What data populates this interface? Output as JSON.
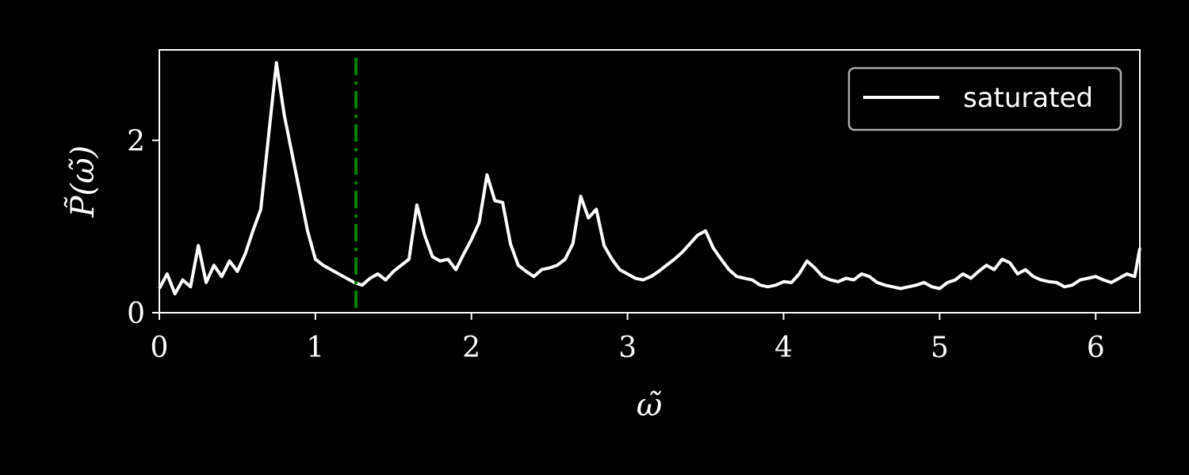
{
  "chart_data": {
    "type": "line",
    "xlabel": "ω̃",
    "ylabel": "P̃(ω̃)",
    "xlim": [
      0,
      6.283
    ],
    "ylim": [
      0,
      3.05
    ],
    "xticks": [
      0,
      1,
      2,
      3,
      4,
      5,
      6
    ],
    "xtick_labels": [
      "0",
      "1",
      "2",
      "3",
      "4",
      "5",
      "6"
    ],
    "yticks": [
      0,
      2
    ],
    "ytick_labels": [
      "0",
      "2"
    ],
    "grid": false,
    "legend": {
      "position": "top-right",
      "entries": [
        "saturated"
      ]
    },
    "series": [
      {
        "name": "saturated",
        "color": "#ffffff",
        "x": [
          0.0,
          0.05,
          0.1,
          0.15,
          0.2,
          0.25,
          0.3,
          0.35,
          0.4,
          0.45,
          0.5,
          0.55,
          0.6,
          0.65,
          0.7,
          0.75,
          0.8,
          0.85,
          0.9,
          0.95,
          1.0,
          1.05,
          1.1,
          1.15,
          1.2,
          1.25,
          1.3,
          1.35,
          1.4,
          1.45,
          1.5,
          1.55,
          1.6,
          1.65,
          1.7,
          1.75,
          1.8,
          1.85,
          1.9,
          1.95,
          2.0,
          2.05,
          2.1,
          2.15,
          2.2,
          2.25,
          2.3,
          2.35,
          2.4,
          2.45,
          2.5,
          2.55,
          2.6,
          2.65,
          2.7,
          2.75,
          2.8,
          2.85,
          2.9,
          2.95,
          3.0,
          3.05,
          3.1,
          3.15,
          3.2,
          3.25,
          3.3,
          3.35,
          3.4,
          3.45,
          3.5,
          3.55,
          3.6,
          3.65,
          3.7,
          3.75,
          3.8,
          3.85,
          3.9,
          3.95,
          4.0,
          4.05,
          4.1,
          4.15,
          4.2,
          4.25,
          4.3,
          4.35,
          4.4,
          4.45,
          4.5,
          4.55,
          4.6,
          4.65,
          4.7,
          4.75,
          4.8,
          4.85,
          4.9,
          4.95,
          5.0,
          5.05,
          5.1,
          5.15,
          5.2,
          5.25,
          5.3,
          5.35,
          5.4,
          5.45,
          5.5,
          5.55,
          5.6,
          5.65,
          5.7,
          5.75,
          5.8,
          5.85,
          5.9,
          5.95,
          6.0,
          6.05,
          6.1,
          6.15,
          6.2,
          6.25,
          6.283
        ],
        "y": [
          0.28,
          0.45,
          0.22,
          0.38,
          0.3,
          0.78,
          0.35,
          0.55,
          0.42,
          0.6,
          0.48,
          0.68,
          0.95,
          1.2,
          2.05,
          2.9,
          2.3,
          1.85,
          1.4,
          0.95,
          0.62,
          0.55,
          0.5,
          0.45,
          0.4,
          0.35,
          0.32,
          0.4,
          0.45,
          0.38,
          0.48,
          0.55,
          0.62,
          1.25,
          0.9,
          0.65,
          0.6,
          0.62,
          0.5,
          0.68,
          0.85,
          1.05,
          1.6,
          1.3,
          1.28,
          0.8,
          0.55,
          0.48,
          0.42,
          0.5,
          0.52,
          0.55,
          0.62,
          0.8,
          1.35,
          1.1,
          1.2,
          0.78,
          0.62,
          0.5,
          0.45,
          0.4,
          0.38,
          0.42,
          0.48,
          0.55,
          0.62,
          0.7,
          0.8,
          0.9,
          0.95,
          0.75,
          0.62,
          0.5,
          0.42,
          0.4,
          0.38,
          0.32,
          0.3,
          0.32,
          0.36,
          0.35,
          0.45,
          0.6,
          0.52,
          0.42,
          0.38,
          0.36,
          0.4,
          0.38,
          0.45,
          0.42,
          0.35,
          0.32,
          0.3,
          0.28,
          0.3,
          0.32,
          0.35,
          0.3,
          0.28,
          0.35,
          0.38,
          0.45,
          0.4,
          0.48,
          0.55,
          0.5,
          0.62,
          0.58,
          0.45,
          0.5,
          0.42,
          0.38,
          0.36,
          0.35,
          0.3,
          0.32,
          0.38,
          0.4,
          0.42,
          0.38,
          0.35,
          0.4,
          0.45,
          0.42,
          0.75
        ]
      }
    ],
    "reference_line": {
      "x": 1.26,
      "color": "#008000",
      "style": "dash-dot"
    }
  }
}
